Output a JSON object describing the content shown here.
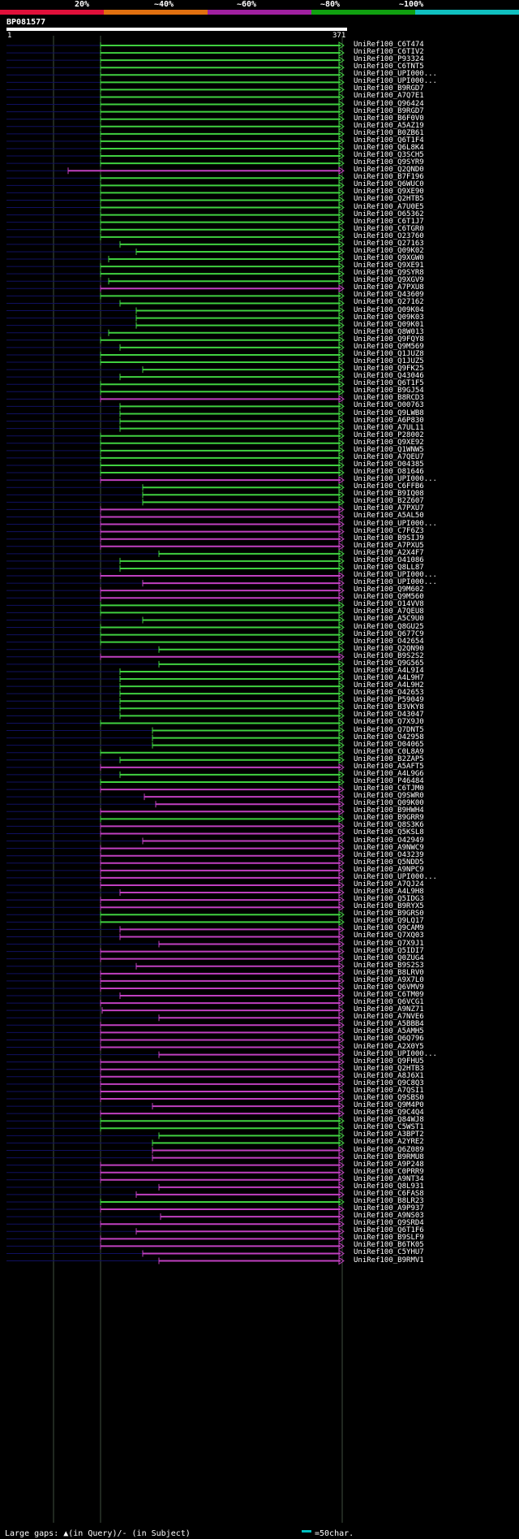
{
  "scale": {
    "labels": [
      "20%",
      "~40%",
      "~60%",
      "~80%",
      "~100%"
    ],
    "colors": [
      "#e0103a",
      "#e07010",
      "#a020a0",
      "#10a010",
      "#10c0c0"
    ]
  },
  "query": {
    "name": "BP081577",
    "start": "1",
    "end": "371"
  },
  "colors": {
    "green": "#40d040",
    "magenta": "#c040c0",
    "navy": "#101060",
    "grid": "#405040"
  },
  "hits": [
    "UniRef100_C6T474",
    "UniRef100_C6TIV2",
    "UniRef100_P93324",
    "UniRef100_C6TNT5",
    "UniRef100_UPI000...",
    "UniRef100_UPI000...",
    "UniRef100_B9RGD7",
    "UniRef100_A7Q7E1",
    "UniRef100_Q96424",
    "UniRef100_B9RGD7",
    "UniRef100_B6F0V0",
    "UniRef100_A5AZ19",
    "UniRef100_B0ZB61",
    "UniRef100_Q6T1F4",
    "UniRef100_Q6L8K4",
    "UniRef100_Q3SCH5",
    "UniRef100_Q9SYR9",
    "UniRef100_Q2QND0",
    "UniRef100_B7F196",
    "UniRef100_Q6WUC0",
    "UniRef100_Q9XE90",
    "UniRef100_Q2HTB5",
    "UniRef100_A7U0E5",
    "UniRef100_O65362",
    "UniRef100_C6T1J7",
    "UniRef100_C6TGR0",
    "UniRef100_O23760",
    "UniRef100_Q27163",
    "UniRef100_Q09K02",
    "UniRef100_Q9XGW0",
    "UniRef100_Q9XE91",
    "UniRef100_Q9SYR8",
    "UniRef100_Q9XGV9",
    "UniRef100_A7PXU8",
    "UniRef100_Q43609",
    "UniRef100_Q27162",
    "UniRef100_Q09K04",
    "UniRef100_Q09K03",
    "UniRef100_Q09K01",
    "UniRef100_Q8W013",
    "UniRef100_Q9FQY8",
    "UniRef100_Q9M569",
    "UniRef100_Q1JUZ8",
    "UniRef100_Q1JUZ5",
    "UniRef100_Q9FK25",
    "UniRef100_Q43046",
    "UniRef100_Q6T1F5",
    "UniRef100_B9GJ54",
    "UniRef100_B8RCD3",
    "UniRef100_O00763",
    "UniRef100_Q9LWB8",
    "UniRef100_A6P830",
    "UniRef100_A7UL11",
    "UniRef100_P28002",
    "UniRef100_Q9XE92",
    "UniRef100_Q1WNW5",
    "UniRef100_A7QEU7",
    "UniRef100_O04385",
    "UniRef100_O81646",
    "UniRef100_UPI000...",
    "UniRef100_C6FFB6",
    "UniRef100_B9IQ08",
    "UniRef100_B2Z607",
    "UniRef100_A7PXU7",
    "UniRef100_A5AL50",
    "UniRef100_UPI000...",
    "UniRef100_C7F6Z3",
    "UniRef100_B9SIJ9",
    "UniRef100_A7PXU5",
    "UniRef100_A2X4F7",
    "UniRef100_O41086",
    "UniRef100_Q8LL87",
    "UniRef100_UPI000...",
    "UniRef100_UPI000...",
    "UniRef100_Q9M602",
    "UniRef100_Q9M560",
    "UniRef100_O14VV8",
    "UniRef100_A7QEU8",
    "UniRef100_A5C9U0",
    "UniRef100_Q8GU25",
    "UniRef100_Q677C9",
    "UniRef100_O42654",
    "UniRef100_Q2QN90",
    "UniRef100_B9S2S2",
    "UniRef100_Q9G565",
    "UniRef100_A4L9I4",
    "UniRef100_A4L9H7",
    "UniRef100_A4L9H2",
    "UniRef100_O42653",
    "UniRef100_P59049",
    "UniRef100_B3VKY8",
    "UniRef100_O43047",
    "UniRef100_Q7X9J0",
    "UniRef100_Q7DNT5",
    "UniRef100_O42958",
    "UniRef100_O04065",
    "UniRef100_C0L8A9",
    "UniRef100_B2ZAP5",
    "UniRef100_A5AFT5",
    "UniRef100_A4L9G6",
    "UniRef100_P46484",
    "UniRef100_C6TJM0",
    "UniRef100_Q9SWR0",
    "UniRef100_Q09K00",
    "UniRef100_B9HWH4",
    "UniRef100_B9GRR9",
    "UniRef100_Q8S3K6",
    "UniRef100_Q5KSL8",
    "UniRef100_O42949",
    "UniRef100_A9NWC9",
    "UniRef100_O43239",
    "UniRef100_Q5NDD5",
    "UniRef100_A9NPC9",
    "UniRef100_UPI000...",
    "UniRef100_A7QJ24",
    "UniRef100_A4L9H8",
    "UniRef100_Q5IDG3",
    "UniRef100_B9RYX5",
    "UniRef100_B9GRS0",
    "UniRef100_Q9LQ17",
    "UniRef100_Q9CAM9",
    "UniRef100_Q7XQ03",
    "UniRef100_Q7X9J1",
    "UniRef100_Q5IDI7",
    "UniRef100_Q0ZUG4",
    "UniRef100_B9S2S3",
    "UniRef100_B8LRV0",
    "UniRef100_A9X7L0",
    "UniRef100_Q6VMV9",
    "UniRef100_C6TM09",
    "UniRef100_Q6VCG1",
    "UniRef100_A9NZ71",
    "UniRef100_A7NVE6",
    "UniRef100_A5BBB4",
    "UniRef100_A5AMH5",
    "UniRef100_Q6Q796",
    "UniRef100_A2X0Y5",
    "UniRef100_UPI000...",
    "UniRef100_Q9FHU5",
    "UniRef100_Q2HTB3",
    "UniRef100_A8J6X1",
    "UniRef100_Q9C8Q3",
    "UniRef100_A7QSI1",
    "UniRef100_Q9SBS0",
    "UniRef100_Q9M4P0",
    "UniRef100_Q9C4Q4",
    "UniRef100_Q84WJ8",
    "UniRef100_C5WST1",
    "UniRef100_A3BPT2",
    "UniRef100_A2YRE2",
    "UniRef100_Q6Z089",
    "UniRef100_B9RMU8",
    "UniRef100_A9P248",
    "UniRef100_C0PRR9",
    "UniRef100_A9NT34",
    "UniRef100_Q8L931",
    "UniRef100_C6FAS8",
    "UniRef100_B8LR23",
    "UniRef100_A9P937",
    "UniRef100_A9NS03",
    "UniRef100_Q9SRD4",
    "UniRef100_Q6T1F6",
    "UniRef100_B9SLF9",
    "UniRef100_B6TK05",
    "UniRef100_C5YHU7",
    "UniRef100_B9RMV1"
  ],
  "footer": {
    "left": "Large gaps: ▲(in Query)/- (in Subject)",
    "right": "=50char."
  }
}
